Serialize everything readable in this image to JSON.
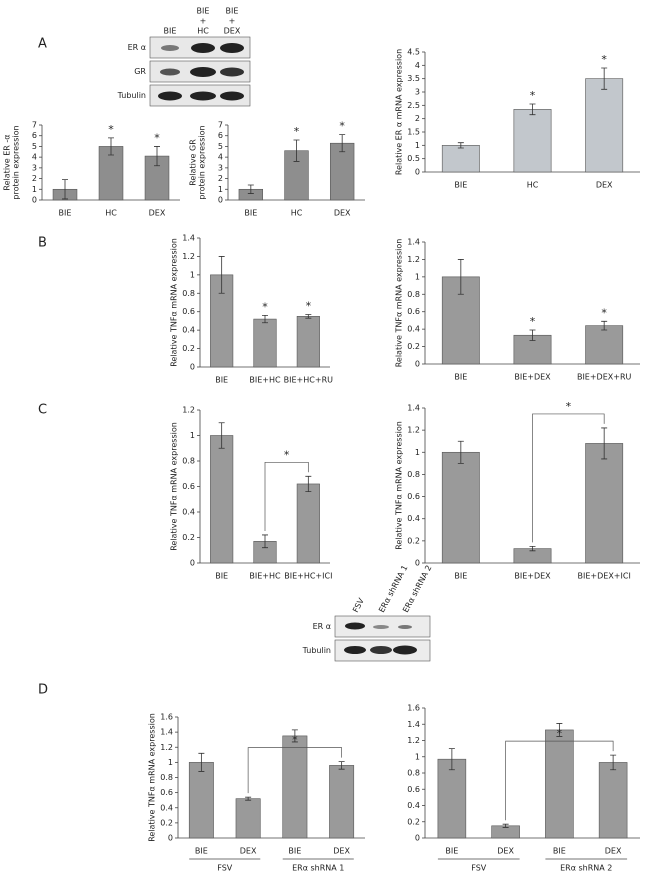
{
  "panels": [
    "A",
    "B",
    "C",
    "D"
  ],
  "blots": [
    {
      "lanes": [
        [
          "BIE"
        ],
        [
          "BIE",
          "+",
          "HC"
        ],
        [
          "BIE",
          "+",
          "DEX"
        ]
      ],
      "rows": [
        "ER α",
        "GR",
        "Tubulin"
      ]
    },
    {
      "lanes": [
        [
          "FSV"
        ],
        [
          "ERα shRNA 1"
        ],
        [
          "ERα shRNA 2"
        ]
      ],
      "rows": [
        "ER α",
        "Tubulin"
      ]
    }
  ],
  "chart_data": [
    {
      "type": "bar",
      "ylabel": [
        "Relative ER -α",
        "protein expression"
      ],
      "categories": [
        "BIE",
        "HC",
        "DEX"
      ],
      "values": [
        1,
        5,
        4.1
      ],
      "errors": [
        0.9,
        0.8,
        0.9
      ],
      "color": "#8e8e8e",
      "ylim": [
        0,
        7
      ],
      "yticks": [
        0,
        1,
        2,
        3,
        4,
        5,
        6,
        7
      ],
      "annotations": [
        {
          "text": "*",
          "index": 1
        },
        {
          "text": "*",
          "index": 2
        }
      ]
    },
    {
      "type": "bar",
      "ylabel": [
        "Relative GR",
        "protein expression"
      ],
      "categories": [
        "BIE",
        "HC",
        "DEX"
      ],
      "values": [
        1,
        4.6,
        5.3
      ],
      "errors": [
        0.4,
        1,
        0.8
      ],
      "color": "#8e8e8e",
      "ylim": [
        0,
        7
      ],
      "yticks": [
        0,
        1,
        2,
        3,
        4,
        5,
        6,
        7
      ],
      "annotations": [
        {
          "text": "*",
          "index": 1
        },
        {
          "text": "*",
          "index": 2
        }
      ]
    },
    {
      "type": "bar",
      "ylabel": [
        "Relative ER α  mRNA expression"
      ],
      "categories": [
        "BIE",
        "HC",
        "DEX"
      ],
      "values": [
        1,
        2.35,
        3.5
      ],
      "errors": [
        0.1,
        0.2,
        0.4
      ],
      "color": "#c2c7cc",
      "ylim": [
        0,
        4.5
      ],
      "yticks": [
        0,
        0.5,
        1,
        1.5,
        2,
        2.5,
        3,
        3.5,
        4,
        4.5
      ],
      "annotations": [
        {
          "text": "*",
          "index": 1
        },
        {
          "text": "*",
          "index": 2
        }
      ]
    },
    {
      "type": "bar",
      "ylabel": [
        "Relative TNFα mRNA expression"
      ],
      "categories": [
        "BIE",
        "BIE+HC",
        "BIE+HC+RU"
      ],
      "values": [
        1,
        0.52,
        0.55
      ],
      "errors": [
        0.2,
        0.04,
        0.02
      ],
      "color": "#9a9a9a",
      "ylim": [
        0,
        1.4
      ],
      "yticks": [
        0,
        0.2,
        0.4,
        0.6,
        0.8,
        1,
        1.2,
        1.4
      ],
      "annotations": [
        {
          "text": "*",
          "index": 1
        },
        {
          "text": "*",
          "index": 2
        }
      ]
    },
    {
      "type": "bar",
      "ylabel": [
        "Relative TNFα mRNA expression"
      ],
      "categories": [
        "BIE",
        "BIE+DEX",
        "BIE+DEX+RU"
      ],
      "values": [
        1,
        0.33,
        0.44
      ],
      "errors": [
        0.2,
        0.06,
        0.05
      ],
      "color": "#9a9a9a",
      "ylim": [
        0,
        1.4
      ],
      "yticks": [
        0,
        0.2,
        0.4,
        0.6,
        0.8,
        1,
        1.2,
        1.4
      ],
      "annotations": [
        {
          "text": "*",
          "index": 1
        },
        {
          "text": "*",
          "index": 2
        }
      ]
    },
    {
      "type": "bar",
      "ylabel": [
        "Relative TNFα mRNA expression"
      ],
      "categories": [
        "BIE",
        "BIE+HC",
        "BIE+HC+ICI"
      ],
      "values": [
        1,
        0.17,
        0.62
      ],
      "errors": [
        0.1,
        0.05,
        0.06
      ],
      "color": "#9a9a9a",
      "ylim": [
        0,
        1.2
      ],
      "yticks": [
        0,
        0.2,
        0.4,
        0.6,
        0.8,
        1,
        1.2
      ],
      "brackets": [
        {
          "text": "*",
          "from": 1,
          "to": 2
        }
      ]
    },
    {
      "type": "bar",
      "ylabel": [
        "Relative TNFα mRNA expression"
      ],
      "categories": [
        "BIE",
        "BIE+DEX",
        "BIE+DEX+ICI"
      ],
      "values": [
        1,
        0.13,
        1.08
      ],
      "errors": [
        0.1,
        0.02,
        0.14
      ],
      "color": "#9a9a9a",
      "ylim": [
        0,
        1.4
      ],
      "yticks": [
        0,
        0.2,
        0.4,
        0.6,
        0.8,
        1,
        1.2,
        1.4
      ],
      "brackets": [
        {
          "text": "*",
          "from": 1,
          "to": 2
        }
      ]
    },
    {
      "type": "bar",
      "ylabel": [
        "Relative TNFα mRNA expression"
      ],
      "categories": [
        "BIE",
        "DEX",
        "BIE",
        "DEX"
      ],
      "groups": [
        "FSV",
        "ERα shRNA 1"
      ],
      "values": [
        1,
        0.52,
        1.35,
        0.96
      ],
      "errors": [
        0.12,
        0.02,
        0.08,
        0.05
      ],
      "color": "#9a9a9a",
      "ylim": [
        0,
        1.6
      ],
      "yticks": [
        0,
        0.2,
        0.4,
        0.6,
        0.8,
        1,
        1.2,
        1.4,
        1.6
      ],
      "brackets": [
        {
          "text": "*",
          "from": 1,
          "to": 3
        }
      ]
    },
    {
      "type": "bar",
      "categories": [
        "BIE",
        "DEX",
        "BIE",
        "DEX"
      ],
      "groups": [
        "FSV",
        "ERα shRNA 2"
      ],
      "values": [
        0.97,
        0.15,
        1.33,
        0.93
      ],
      "errors": [
        0.13,
        0.02,
        0.08,
        0.09
      ],
      "color": "#9a9a9a",
      "ylim": [
        0,
        1.6
      ],
      "yticks": [
        0,
        0.2,
        0.4,
        0.6,
        0.8,
        1,
        1.2,
        1.4,
        1.6
      ],
      "brackets": [
        {
          "text": "*",
          "from": 1,
          "to": 3
        }
      ]
    }
  ]
}
